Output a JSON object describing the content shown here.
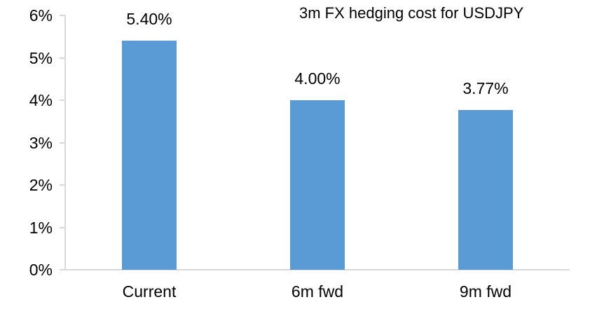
{
  "chart_data": {
    "type": "bar",
    "title": "3m FX hedging cost for USDJPY",
    "categories": [
      "Current",
      "6m fwd",
      "9m fwd"
    ],
    "values": [
      5.4,
      4.0,
      3.77
    ],
    "value_labels": [
      "5.40%",
      "4.00%",
      "3.77%"
    ],
    "xlabel": "",
    "ylabel": "",
    "ylim": [
      0,
      6
    ],
    "ytick_values": [
      0,
      1,
      2,
      3,
      4,
      5,
      6
    ],
    "ytick_labels": [
      "0%",
      "1%",
      "2%",
      "3%",
      "4%",
      "5%",
      "6%"
    ],
    "grid": false,
    "legend_position": "none",
    "colors": {
      "bar": "#5B9BD5",
      "axis": "#D9D9D9",
      "text": "#000000",
      "background": "#FFFFFF"
    }
  }
}
